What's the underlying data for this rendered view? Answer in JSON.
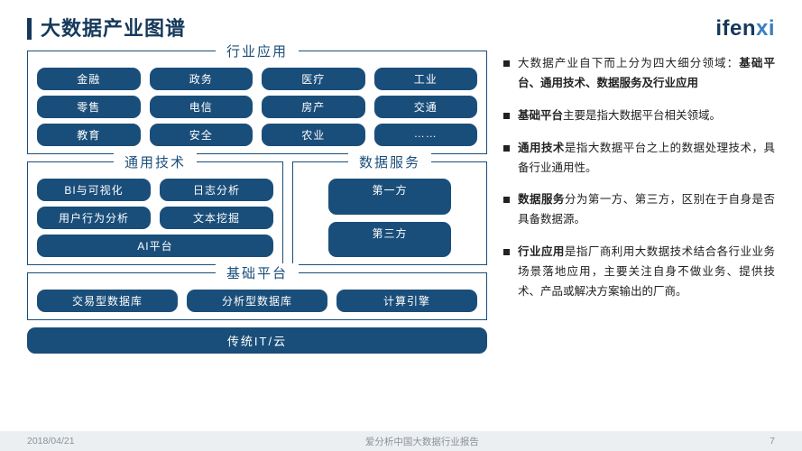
{
  "page": {
    "title": "大数据产业图谱",
    "logo_dark": "ifen",
    "logo_blue": "xi"
  },
  "colors": {
    "primary": "#1a4e7a",
    "title": "#15395b",
    "logo_blue": "#3a7fbf",
    "footer_bg": "#eceff1",
    "footer_text": "#8a9199"
  },
  "layers": {
    "apps": {
      "title": "行业应用",
      "rows": [
        [
          "金融",
          "政务",
          "医疗",
          "工业"
        ],
        [
          "零售",
          "电信",
          "房产",
          "交通"
        ],
        [
          "教育",
          "安全",
          "农业",
          "……"
        ]
      ]
    },
    "tech": {
      "title": "通用技术",
      "rows": [
        [
          "BI与可视化",
          "日志分析"
        ],
        [
          "用户行为分析",
          "文本挖掘"
        ]
      ],
      "full": "AI平台"
    },
    "service": {
      "title": "数据服务",
      "items": [
        "第一方",
        "第三方"
      ]
    },
    "infra": {
      "title": "基础平台",
      "row": [
        "交易型数据库",
        "分析型数据库",
        "计算引擎"
      ]
    },
    "bottom": "传统IT/云"
  },
  "bullets": {
    "b1a": "大数据产业自下而上分为四大细分领域：",
    "b1b": "基础平台、通用技术、数据服务及行业应用",
    "b2a": "基础平台",
    "b2b": "主要是指大数据平台相关领域。",
    "b3a": "通用技术",
    "b3b": "是指大数据平台之上的数据处理技术，具备行业通用性。",
    "b4a": "数据服务",
    "b4b": "分为第一方、第三方，区别在于自身是否具备数据源。",
    "b5a": "行业应用",
    "b5b": "是指厂商利用大数据技术结合各行业业务场景落地应用，主要关注自身不做业务、提供技术、产品或解决方案输出的厂商。"
  },
  "footer": {
    "date": "2018/04/21",
    "center": "爱分析中国大数据行业报告",
    "page": "7"
  }
}
